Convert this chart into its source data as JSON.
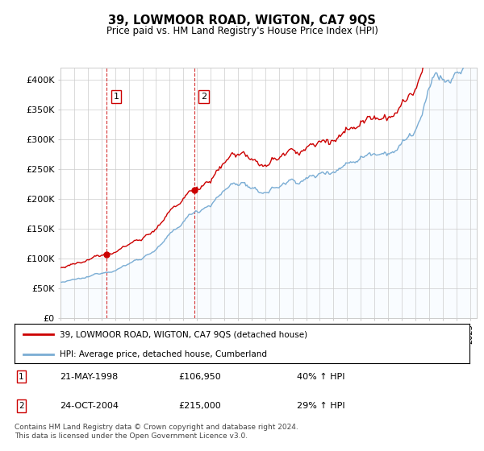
{
  "title": "39, LOWMOOR ROAD, WIGTON, CA7 9QS",
  "subtitle": "Price paid vs. HM Land Registry's House Price Index (HPI)",
  "legend_line1": "39, LOWMOOR ROAD, WIGTON, CA7 9QS (detached house)",
  "legend_line2": "HPI: Average price, detached house, Cumberland",
  "sale1_date": "21-MAY-1998",
  "sale1_price": 106950,
  "sale1_year": 1998.38,
  "sale1_label": "40% ↑ HPI",
  "sale2_date": "24-OCT-2004",
  "sale2_price": 215000,
  "sale2_year": 2004.79,
  "sale2_label": "29% ↑ HPI",
  "footnote": "Contains HM Land Registry data © Crown copyright and database right 2024.\nThis data is licensed under the Open Government Licence v3.0.",
  "hpi_color": "#7aadd4",
  "price_color": "#cc0000",
  "vline_color": "#cc0000",
  "background_color": "#ffffff",
  "grid_color": "#cccccc",
  "shade_color": "#ddeeff",
  "ylim": [
    0,
    420000
  ],
  "yticks": [
    0,
    50000,
    100000,
    150000,
    200000,
    250000,
    300000,
    350000,
    400000
  ],
  "ylabels": [
    "£0",
    "£50K",
    "£100K",
    "£150K",
    "£200K",
    "£250K",
    "£300K",
    "£350K",
    "£400K"
  ],
  "xlim_start": 1995.0,
  "xlim_end": 2025.5
}
